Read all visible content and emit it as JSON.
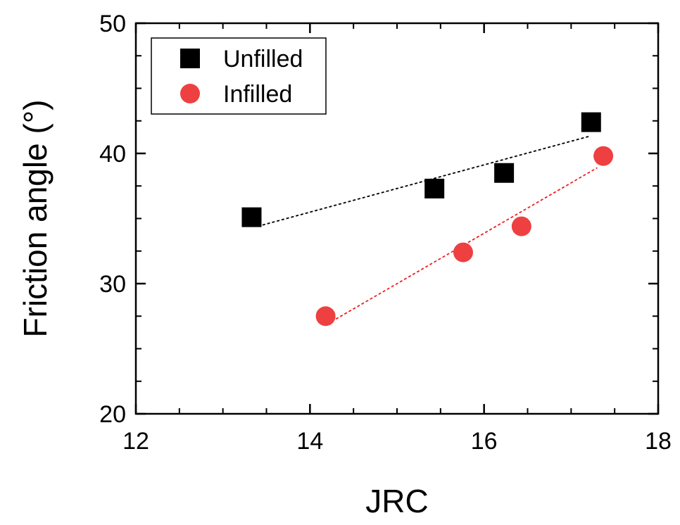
{
  "chart_data": {
    "type": "scatter",
    "xlabel": "JRC",
    "ylabel": "Friction angle (°)",
    "xlim": [
      12,
      18
    ],
    "ylim": [
      20,
      50
    ],
    "x_ticks": [
      12,
      14,
      16,
      18
    ],
    "y_ticks": [
      20,
      30,
      40,
      50
    ],
    "x_minor_step": 0.5,
    "y_minor_step": 2.5,
    "legend_placement": "top-left",
    "grid": false,
    "series": [
      {
        "name": "Unfilled",
        "marker": "square",
        "color": "#000000",
        "points": [
          {
            "x": 13.33,
            "y": 35.1
          },
          {
            "x": 15.43,
            "y": 37.3
          },
          {
            "x": 16.23,
            "y": 38.5
          },
          {
            "x": 17.23,
            "y": 42.4
          }
        ],
        "fit": {
          "x_start": 13.4,
          "x_end": 17.2,
          "y_start": 34.4,
          "y_end": 41.3,
          "color": "#000000"
        }
      },
      {
        "name": "Infilled",
        "marker": "circle",
        "color": "#ee4040",
        "points": [
          {
            "x": 14.18,
            "y": 27.5
          },
          {
            "x": 15.76,
            "y": 32.4
          },
          {
            "x": 16.43,
            "y": 34.4
          },
          {
            "x": 17.37,
            "y": 39.8
          }
        ],
        "fit": {
          "x_start": 14.2,
          "x_end": 17.3,
          "y_start": 26.9,
          "y_end": 38.9,
          "color": "#ee2020"
        }
      }
    ]
  }
}
